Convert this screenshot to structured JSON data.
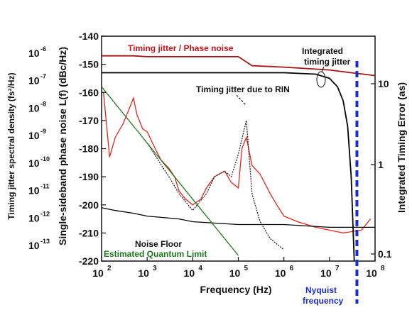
{
  "chart_data": {
    "type": "line",
    "x_scale": "log",
    "xlim": [
      100,
      100000000
    ],
    "ylim": [
      -220,
      -140
    ],
    "y2lim": [
      0.1,
      20
    ],
    "y3lim": [
      1e-13,
      2e-06
    ],
    "xlabel": "Frequency (Hz)",
    "ylabel": "Single-sideband phase noise L(f) (dBc/Hz)",
    "ylabel_left": "Timing jitter spectral density (fs²/Hz)",
    "ylabel_right": "Integrated Timing Error (as)",
    "x_tick_bases": [
      "10",
      "10",
      "10",
      "10",
      "10",
      "10",
      "10"
    ],
    "x_tick_exps": [
      "2",
      "3",
      "4",
      "5",
      "6",
      "7",
      "8"
    ],
    "y_ticks": [
      "-140",
      "-150",
      "-160",
      "-170",
      "-180",
      "-190",
      "-200",
      "-210",
      "-220"
    ],
    "y_left_tick_bases": [
      "10",
      "10",
      "10",
      "10",
      "10",
      "10",
      "10",
      "10"
    ],
    "y_left_tick_exps": [
      "-6",
      "-7",
      "-8",
      "-9",
      "-10",
      "-11",
      "-12",
      "-13"
    ],
    "y_right_ticks": [
      "10",
      "1",
      "0.1"
    ],
    "annotations": {
      "timing_jitter": "Timing jitter / Phase noise",
      "integrated_1": "Integrated",
      "integrated_2": "timing jitter",
      "rin": "Timing jitter due to RIN",
      "noise_floor": "Noise Floor",
      "quantum_limit": "Estimated Quantum Limit",
      "nyquist_1": "Nyquist",
      "nyquist_2": "frequency"
    },
    "series": [
      {
        "name": "Timing jitter / Phase noise",
        "color": "#e8231b",
        "x": [
          110,
          150,
          200,
          300,
          400,
          500,
          600,
          800,
          1000,
          1500,
          2000,
          3000,
          4000,
          5000,
          7000,
          10000,
          15000,
          20000,
          30000,
          50000,
          70000,
          100000,
          120000,
          150000,
          200000,
          300000,
          500000,
          700000,
          1000000,
          2000000,
          5000000,
          10000000,
          20000000,
          50000000,
          80000000
        ],
        "y": [
          -160,
          -183,
          -176,
          -171,
          -166,
          -162,
          -168,
          -173,
          -174,
          -180,
          -184,
          -187,
          -190,
          -195,
          -198,
          -200,
          -198,
          -194,
          -190,
          -188,
          -192,
          -194,
          -180,
          -176,
          -186,
          -189,
          -196,
          -200,
          -204,
          -206,
          -208,
          -209,
          -210,
          -209,
          -205
        ]
      },
      {
        "name": "Timing jitter due to RIN",
        "color": "#222222",
        "x": [
          1000,
          3000,
          5000,
          10000,
          20000,
          30000,
          50000,
          70000,
          100000,
          150000,
          200000,
          300000,
          500000,
          1000000
        ],
        "y": [
          -178,
          -190,
          -196,
          -202,
          -196,
          -190,
          -188,
          -190,
          -182,
          -170,
          -196,
          -206,
          -212,
          -216
        ]
      },
      {
        "name": "Noise Floor",
        "color": "#000000",
        "x": [
          100,
          200,
          500,
          1000,
          5000,
          10000,
          100000,
          1000000,
          10000000,
          100000000
        ],
        "y": [
          -201,
          -202,
          -203,
          -204,
          -205,
          -206,
          -207,
          -207,
          -208,
          -208
        ]
      },
      {
        "name": "Estimated Quantum Limit",
        "color": "#1f7a1f",
        "x": [
          100,
          1000,
          10000,
          100000
        ],
        "y": [
          -158,
          -178,
          -198,
          -218
        ]
      },
      {
        "name": "Timing jitter / Phase noise (integrated)",
        "color": "#a31515",
        "axis": "right",
        "x": [
          100,
          500,
          1000,
          5000,
          10000,
          100000,
          200000,
          1000000,
          10000000,
          30000000,
          100000000
        ],
        "y": [
          -147,
          -147,
          -147.3,
          -147.3,
          -147.3,
          -147.3,
          -150.5,
          -151,
          -152,
          -153,
          -154
        ]
      },
      {
        "name": "Integrated timing jitter",
        "color": "#000000",
        "axis": "right",
        "x": [
          100,
          1000,
          10000,
          100000,
          1000000,
          5000000,
          10000000,
          15000000,
          20000000,
          25000000,
          30000000,
          35000000
        ],
        "y": [
          -153,
          -153,
          -153,
          -153,
          -153,
          -153.5,
          -155,
          -158,
          -163,
          -172,
          -190,
          -220
        ]
      }
    ],
    "nyquist_x": 40000000
  }
}
